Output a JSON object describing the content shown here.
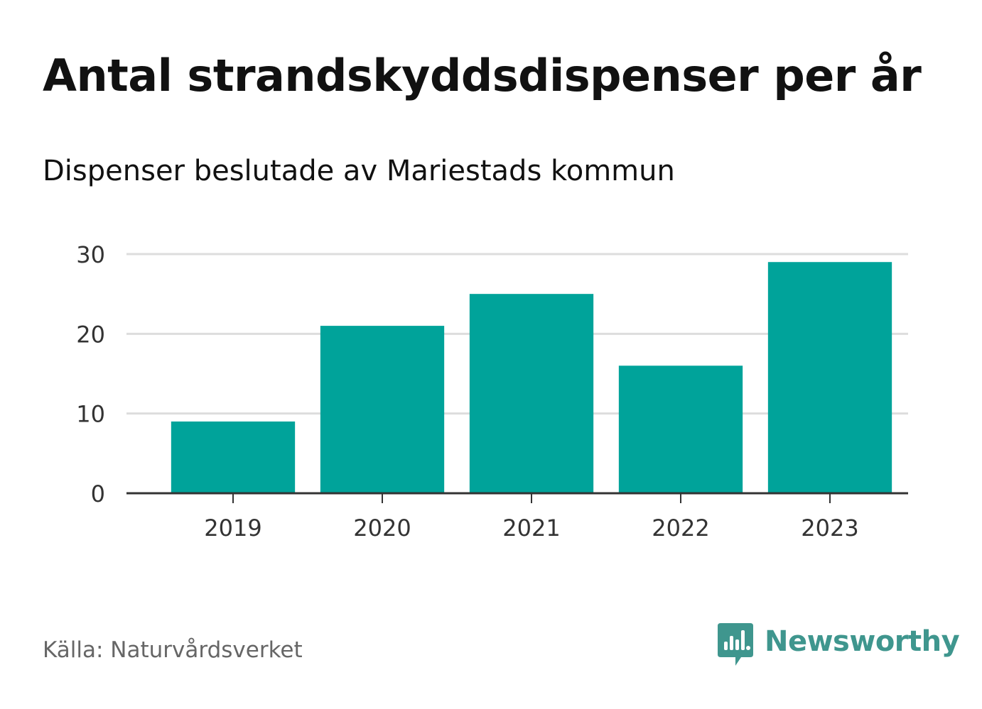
{
  "header": {
    "title": "Antal strandskyddsdispenser per år",
    "subtitle": "Dispenser beslutade av Mariestads kommun"
  },
  "footer": {
    "source": "Källa: Naturvårdsverket",
    "brand": "Newsworthy"
  },
  "colors": {
    "bar": "#00a39a",
    "grid": "#dddddd",
    "axis": "#333333",
    "brand": "#3f968e"
  },
  "chart_data": {
    "type": "bar",
    "title": "Antal strandskyddsdispenser per år",
    "subtitle": "Dispenser beslutade av Mariestads kommun",
    "xlabel": "",
    "ylabel": "",
    "categories": [
      "2019",
      "2020",
      "2021",
      "2022",
      "2023"
    ],
    "values": [
      9,
      21,
      25,
      16,
      29
    ],
    "ylim": [
      0,
      30
    ],
    "yticks": [
      0,
      10,
      20,
      30
    ],
    "grid": true
  }
}
